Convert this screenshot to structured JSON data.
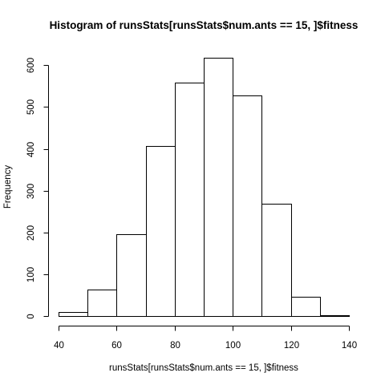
{
  "chart_data": {
    "type": "bar",
    "title": "Histogram of runsStats[runsStats$num.ants == 15, ]$fitness",
    "xlabel": "runsStats[runsStats$num.ants == 15, ]$fitness",
    "ylabel": "Frequency",
    "bin_edges": [
      40,
      50,
      60,
      70,
      80,
      90,
      100,
      110,
      120,
      130,
      140
    ],
    "values": [
      10,
      64,
      195,
      407,
      559,
      618,
      528,
      269,
      47,
      1
    ],
    "xlim": [
      40,
      140
    ],
    "ylim": [
      0,
      618
    ],
    "x_ticks": [
      40,
      60,
      80,
      100,
      120,
      140
    ],
    "y_ticks": [
      0,
      100,
      200,
      300,
      400,
      500,
      600
    ],
    "grid": false
  }
}
